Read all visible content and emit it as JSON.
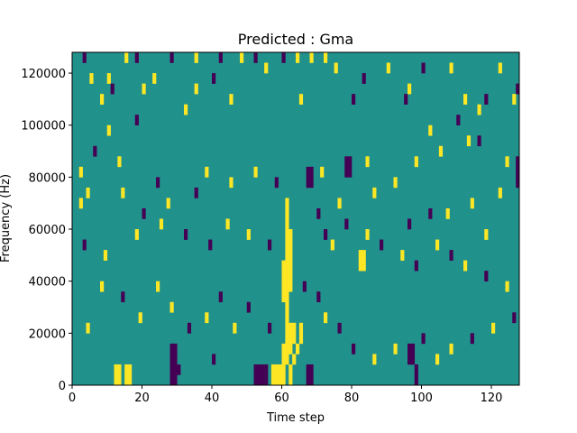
{
  "chart_data": {
    "type": "heatmap",
    "title": "Predicted : Gma",
    "xlabel": "Time step",
    "ylabel": "Frequency (Hz)",
    "xlim": [
      0,
      128
    ],
    "ylim": [
      0,
      128000
    ],
    "xticks": [
      0,
      20,
      40,
      60,
      80,
      100,
      120
    ],
    "xtick_labels": [
      "0",
      "20",
      "40",
      "60",
      "80",
      "100",
      "120"
    ],
    "yticks": [
      0,
      20000,
      40000,
      60000,
      80000,
      100000,
      120000
    ],
    "ytick_labels": [
      "0",
      "20000",
      "40000",
      "60000",
      "80000",
      "100000",
      "120000"
    ],
    "grid": false,
    "n_time_steps": 128,
    "n_freq_bins": 64,
    "colormap": {
      "low": "#440154",
      "mid": "#21918c",
      "high": "#fde725"
    },
    "background_level": "mid",
    "approx_cells": [
      {
        "t": 61,
        "f": [
          4,
          5,
          6,
          7,
          8,
          9,
          10,
          11,
          12,
          13,
          14,
          15,
          16,
          17,
          18,
          19,
          20,
          21,
          22,
          23,
          24,
          25,
          26,
          27,
          28,
          29,
          30,
          31,
          32,
          33,
          34,
          35
        ],
        "level": "high"
      },
      {
        "t": 60,
        "f": [
          0,
          1,
          2,
          3,
          4,
          5,
          6,
          7,
          16,
          17,
          18,
          19,
          20,
          21,
          22,
          23
        ],
        "level": "high"
      },
      {
        "t": 62,
        "f": [
          0,
          1,
          2,
          3,
          6,
          7,
          8,
          9,
          10,
          11,
          18,
          19,
          20,
          21,
          22,
          23,
          24,
          25,
          26,
          27,
          28,
          29
        ],
        "level": "high"
      },
      {
        "t": 57,
        "f": [
          0,
          1,
          2,
          3
        ],
        "level": "high"
      },
      {
        "t": 58,
        "f": [
          0,
          1,
          2,
          3
        ],
        "level": "high"
      },
      {
        "t": 59,
        "f": [
          0,
          1,
          2,
          3
        ],
        "level": "high"
      },
      {
        "t": 63,
        "f": [
          8,
          9,
          10,
          11
        ],
        "level": "high"
      },
      {
        "t": 12,
        "f": [
          0,
          1,
          2,
          3
        ],
        "level": "high"
      },
      {
        "t": 13,
        "f": [
          0,
          1,
          2,
          3
        ],
        "level": "high"
      },
      {
        "t": 15,
        "f": [
          0,
          1,
          2,
          3
        ],
        "level": "high"
      },
      {
        "t": 16,
        "f": [
          0,
          1,
          2,
          3
        ],
        "level": "high"
      },
      {
        "t": 28,
        "f": [
          0,
          1,
          2,
          3,
          4,
          5,
          6,
          7
        ],
        "level": "low"
      },
      {
        "t": 29,
        "f": [
          0,
          1,
          2,
          3,
          4,
          5,
          6,
          7
        ],
        "level": "low"
      },
      {
        "t": 52,
        "f": [
          0,
          1,
          2,
          3
        ],
        "level": "low"
      },
      {
        "t": 53,
        "f": [
          0,
          1,
          2,
          3
        ],
        "level": "low"
      },
      {
        "t": 54,
        "f": [
          0,
          1,
          2,
          3
        ],
        "level": "low"
      },
      {
        "t": 55,
        "f": [
          0,
          1,
          2,
          3
        ],
        "level": "low"
      },
      {
        "t": 67,
        "f": [
          0,
          1,
          2,
          3
        ],
        "level": "low"
      },
      {
        "t": 68,
        "f": [
          0,
          1,
          2,
          3
        ],
        "level": "low"
      },
      {
        "t": 96,
        "f": [
          4,
          5,
          6,
          7
        ],
        "level": "low"
      },
      {
        "t": 97,
        "f": [
          4,
          5,
          6,
          7
        ],
        "level": "low"
      },
      {
        "t": 98,
        "f": [
          0,
          1,
          2,
          3
        ],
        "level": "low"
      },
      {
        "t": 67,
        "f": [
          38,
          39,
          40,
          41
        ],
        "level": "low"
      },
      {
        "t": 68,
        "f": [
          38,
          39,
          40,
          41
        ],
        "level": "low"
      },
      {
        "t": 78,
        "f": [
          40,
          41,
          42,
          43
        ],
        "level": "low"
      },
      {
        "t": 79,
        "f": [
          40,
          41,
          42,
          43
        ],
        "level": "low"
      },
      {
        "t": 82,
        "f": [
          22,
          23,
          24,
          25
        ],
        "level": "high"
      },
      {
        "t": 83,
        "f": [
          22,
          23,
          24,
          25
        ],
        "level": "high"
      },
      {
        "t": 127,
        "f": [
          38,
          39,
          40,
          41,
          42,
          43
        ],
        "level": "low"
      },
      {
        "t": 20,
        "f": [
          56,
          57
        ],
        "level": "high"
      },
      {
        "t": 35,
        "f": [
          56,
          57
        ],
        "level": "high"
      },
      {
        "t": 30,
        "f": [
          2,
          3
        ],
        "level": "low"
      },
      {
        "t": 40,
        "f": [
          4,
          5
        ],
        "level": "low"
      },
      {
        "t": 63,
        "f": [
          4,
          5
        ],
        "level": "high"
      },
      {
        "t": 64,
        "f": [
          6,
          7
        ],
        "level": "high"
      },
      {
        "t": 65,
        "f": [
          8,
          9,
          10,
          11
        ],
        "level": "high"
      },
      {
        "t": 3,
        "f": [
          62,
          63
        ],
        "level": "low"
      },
      {
        "t": 5,
        "f": [
          58,
          59
        ],
        "level": "high"
      },
      {
        "t": 10,
        "f": [
          58,
          59
        ],
        "level": "high"
      },
      {
        "t": 15,
        "f": [
          62,
          63
        ],
        "level": "high"
      },
      {
        "t": 18,
        "f": [
          62,
          63
        ],
        "level": "low"
      },
      {
        "t": 23,
        "f": [
          58,
          59
        ],
        "level": "high"
      },
      {
        "t": 28,
        "f": [
          62,
          63
        ],
        "level": "low"
      },
      {
        "t": 35,
        "f": [
          62,
          63
        ],
        "level": "high"
      },
      {
        "t": 42,
        "f": [
          62,
          63
        ],
        "level": "low"
      },
      {
        "t": 48,
        "f": [
          62,
          63
        ],
        "level": "high"
      },
      {
        "t": 52,
        "f": [
          62,
          63
        ],
        "level": "low"
      },
      {
        "t": 55,
        "f": [
          60,
          61
        ],
        "level": "high"
      },
      {
        "t": 60,
        "f": [
          62,
          63
        ],
        "level": "low"
      },
      {
        "t": 64,
        "f": [
          62,
          63
        ],
        "level": "high"
      },
      {
        "t": 68,
        "f": [
          62,
          63
        ],
        "level": "high"
      },
      {
        "t": 72,
        "f": [
          62,
          63
        ],
        "level": "high"
      },
      {
        "t": 90,
        "f": [
          60,
          61
        ],
        "level": "high"
      },
      {
        "t": 100,
        "f": [
          60,
          61
        ],
        "level": "low"
      },
      {
        "t": 108,
        "f": [
          60,
          61
        ],
        "level": "high"
      },
      {
        "t": 122,
        "f": [
          60,
          61
        ],
        "level": "high"
      },
      {
        "t": 127,
        "f": [
          56,
          57
        ],
        "level": "low"
      },
      {
        "t": 126,
        "f": [
          54,
          55
        ],
        "level": "high"
      },
      {
        "t": 118,
        "f": [
          54,
          55
        ],
        "level": "low"
      },
      {
        "t": 112,
        "f": [
          54,
          55
        ],
        "level": "high"
      },
      {
        "t": 95,
        "f": [
          54,
          55
        ],
        "level": "low"
      },
      {
        "t": 80,
        "f": [
          54,
          55
        ],
        "level": "low"
      },
      {
        "t": 65,
        "f": [
          54,
          55
        ],
        "level": "high"
      },
      {
        "t": 45,
        "f": [
          54,
          55
        ],
        "level": "high"
      },
      {
        "t": 32,
        "f": [
          52,
          53
        ],
        "level": "high"
      },
      {
        "t": 18,
        "f": [
          50,
          51
        ],
        "level": "low"
      },
      {
        "t": 10,
        "f": [
          48,
          49
        ],
        "level": "high"
      },
      {
        "t": 6,
        "f": [
          44,
          45
        ],
        "level": "low"
      },
      {
        "t": 2,
        "f": [
          40,
          41
        ],
        "level": "high"
      },
      {
        "t": 4,
        "f": [
          36,
          37
        ],
        "level": "high"
      },
      {
        "t": 13,
        "f": [
          42,
          43
        ],
        "level": "high"
      },
      {
        "t": 24,
        "f": [
          38,
          39
        ],
        "level": "low"
      },
      {
        "t": 38,
        "f": [
          40,
          41
        ],
        "level": "high"
      },
      {
        "t": 102,
        "f": [
          48,
          49
        ],
        "level": "high"
      },
      {
        "t": 110,
        "f": [
          50,
          51
        ],
        "level": "low"
      },
      {
        "t": 116,
        "f": [
          46,
          47
        ],
        "level": "low"
      },
      {
        "t": 124,
        "f": [
          42,
          43
        ],
        "level": "high"
      },
      {
        "t": 122,
        "f": [
          36,
          37
        ],
        "level": "high"
      },
      {
        "t": 114,
        "f": [
          34,
          35
        ],
        "level": "high"
      },
      {
        "t": 107,
        "f": [
          32,
          33
        ],
        "level": "high"
      },
      {
        "t": 92,
        "f": [
          38,
          39
        ],
        "level": "high"
      },
      {
        "t": 86,
        "f": [
          36,
          37
        ],
        "level": "high"
      },
      {
        "t": 76,
        "f": [
          34,
          35
        ],
        "level": "high"
      },
      {
        "t": 70,
        "f": [
          32,
          33
        ],
        "level": "low"
      },
      {
        "t": 72,
        "f": [
          28,
          29
        ],
        "level": "low"
      },
      {
        "t": 74,
        "f": [
          26,
          27
        ],
        "level": "high"
      },
      {
        "t": 78,
        "f": [
          30,
          31
        ],
        "level": "low"
      },
      {
        "t": 84,
        "f": [
          28,
          29
        ],
        "level": "high"
      },
      {
        "t": 88,
        "f": [
          26,
          27
        ],
        "level": "low"
      },
      {
        "t": 94,
        "f": [
          24,
          25
        ],
        "level": "high"
      },
      {
        "t": 98,
        "f": [
          22,
          23
        ],
        "level": "low"
      },
      {
        "t": 104,
        "f": [
          26,
          27
        ],
        "level": "high"
      },
      {
        "t": 108,
        "f": [
          24,
          25
        ],
        "level": "low"
      },
      {
        "t": 112,
        "f": [
          22,
          23
        ],
        "level": "high"
      },
      {
        "t": 118,
        "f": [
          20,
          21
        ],
        "level": "low"
      },
      {
        "t": 124,
        "f": [
          18,
          19
        ],
        "level": "high"
      },
      {
        "t": 126,
        "f": [
          12,
          13
        ],
        "level": "low"
      },
      {
        "t": 120,
        "f": [
          10,
          11
        ],
        "level": "high"
      },
      {
        "t": 114,
        "f": [
          8,
          9
        ],
        "level": "low"
      },
      {
        "t": 108,
        "f": [
          6,
          7
        ],
        "level": "high"
      },
      {
        "t": 104,
        "f": [
          4,
          5
        ],
        "level": "high"
      },
      {
        "t": 100,
        "f": [
          8,
          9
        ],
        "level": "low"
      },
      {
        "t": 92,
        "f": [
          6,
          7
        ],
        "level": "high"
      },
      {
        "t": 86,
        "f": [
          4,
          5
        ],
        "level": "high"
      },
      {
        "t": 80,
        "f": [
          6,
          7
        ],
        "level": "low"
      },
      {
        "t": 76,
        "f": [
          10,
          11
        ],
        "level": "low"
      },
      {
        "t": 72,
        "f": [
          12,
          13
        ],
        "level": "high"
      },
      {
        "t": 70,
        "f": [
          16,
          17
        ],
        "level": "low"
      },
      {
        "t": 66,
        "f": [
          18,
          19
        ],
        "level": "low"
      },
      {
        "t": 56,
        "f": [
          10,
          11
        ],
        "level": "low"
      },
      {
        "t": 50,
        "f": [
          14,
          15
        ],
        "level": "low"
      },
      {
        "t": 46,
        "f": [
          10,
          11
        ],
        "level": "high"
      },
      {
        "t": 42,
        "f": [
          16,
          17
        ],
        "level": "low"
      },
      {
        "t": 38,
        "f": [
          12,
          13
        ],
        "level": "high"
      },
      {
        "t": 33,
        "f": [
          10,
          11
        ],
        "level": "low"
      },
      {
        "t": 28,
        "f": [
          14,
          15
        ],
        "level": "high"
      },
      {
        "t": 24,
        "f": [
          18,
          19
        ],
        "level": "high"
      },
      {
        "t": 19,
        "f": [
          12,
          13
        ],
        "level": "high"
      },
      {
        "t": 14,
        "f": [
          16,
          17
        ],
        "level": "low"
      },
      {
        "t": 8,
        "f": [
          18,
          19
        ],
        "level": "high"
      },
      {
        "t": 4,
        "f": [
          10,
          11
        ],
        "level": "high"
      },
      {
        "t": 3,
        "f": [
          26,
          27
        ],
        "level": "low"
      },
      {
        "t": 9,
        "f": [
          24,
          25
        ],
        "level": "high"
      },
      {
        "t": 18,
        "f": [
          28,
          29
        ],
        "level": "high"
      },
      {
        "t": 25,
        "f": [
          30,
          31
        ],
        "level": "high"
      },
      {
        "t": 32,
        "f": [
          28,
          29
        ],
        "level": "low"
      },
      {
        "t": 39,
        "f": [
          26,
          27
        ],
        "level": "low"
      },
      {
        "t": 44,
        "f": [
          30,
          31
        ],
        "level": "high"
      },
      {
        "t": 50,
        "f": [
          28,
          29
        ],
        "level": "high"
      },
      {
        "t": 56,
        "f": [
          26,
          27
        ],
        "level": "low"
      },
      {
        "t": 96,
        "f": [
          30,
          31
        ],
        "level": "low"
      },
      {
        "t": 102,
        "f": [
          32,
          33
        ],
        "level": "low"
      },
      {
        "t": 118,
        "f": [
          28,
          29
        ],
        "level": "high"
      },
      {
        "t": 8,
        "f": [
          54,
          55
        ],
        "level": "high"
      },
      {
        "t": 11,
        "f": [
          56,
          57
        ],
        "level": "low"
      },
      {
        "t": 40,
        "f": [
          58,
          59
        ],
        "level": "low"
      },
      {
        "t": 75,
        "f": [
          60,
          61
        ],
        "level": "high"
      },
      {
        "t": 83,
        "f": [
          58,
          59
        ],
        "level": "low"
      },
      {
        "t": 96,
        "f": [
          56,
          57
        ],
        "level": "high"
      },
      {
        "t": 116,
        "f": [
          52,
          53
        ],
        "level": "high"
      },
      {
        "t": 113,
        "f": [
          46,
          47
        ],
        "level": "high"
      },
      {
        "t": 105,
        "f": [
          44,
          45
        ],
        "level": "high"
      },
      {
        "t": 98,
        "f": [
          42,
          43
        ],
        "level": "high"
      },
      {
        "t": 84,
        "f": [
          42,
          43
        ],
        "level": "high"
      },
      {
        "t": 71,
        "f": [
          40,
          41
        ],
        "level": "high"
      },
      {
        "t": 58,
        "f": [
          38,
          39
        ],
        "level": "low"
      },
      {
        "t": 52,
        "f": [
          40,
          41
        ],
        "level": "high"
      },
      {
        "t": 45,
        "f": [
          38,
          39
        ],
        "level": "high"
      },
      {
        "t": 35,
        "f": [
          36,
          37
        ],
        "level": "low"
      },
      {
        "t": 27,
        "f": [
          34,
          35
        ],
        "level": "high"
      },
      {
        "t": 20,
        "f": [
          32,
          33
        ],
        "level": "low"
      },
      {
        "t": 14,
        "f": [
          36,
          37
        ],
        "level": "high"
      },
      {
        "t": 2,
        "f": [
          34,
          35
        ],
        "level": "high"
      }
    ]
  }
}
